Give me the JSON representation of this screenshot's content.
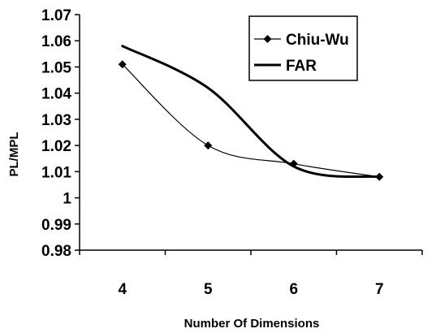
{
  "chart_data": {
    "type": "line",
    "title": "",
    "xlabel": "Number Of Dimensions",
    "ylabel": "PL/MPL",
    "x": [
      4,
      5,
      6,
      7
    ],
    "x_tick_labels": [
      "4",
      "5",
      "6",
      "7"
    ],
    "xlim": [
      3.5,
      7.5
    ],
    "ylim": [
      0.98,
      1.07
    ],
    "y_ticks": [
      0.98,
      0.99,
      1.0,
      1.01,
      1.02,
      1.03,
      1.04,
      1.05,
      1.06,
      1.07
    ],
    "y_tick_labels": [
      "0.98",
      "0.99",
      "1",
      "1.01",
      "1.02",
      "1.03",
      "1.04",
      "1.05",
      "1.06",
      "1.07"
    ],
    "grid": false,
    "legend_position": "top-right",
    "series": [
      {
        "name": "Chiu-Wu",
        "values": [
          1.051,
          1.02,
          1.013,
          1.008
        ],
        "marker": "diamond",
        "color": "#000000",
        "line_style": "thin"
      },
      {
        "name": "FAR",
        "values": [
          1.058,
          1.042,
          1.012,
          1.008
        ],
        "marker": "none",
        "color": "#000000",
        "line_style": "thick"
      }
    ]
  }
}
